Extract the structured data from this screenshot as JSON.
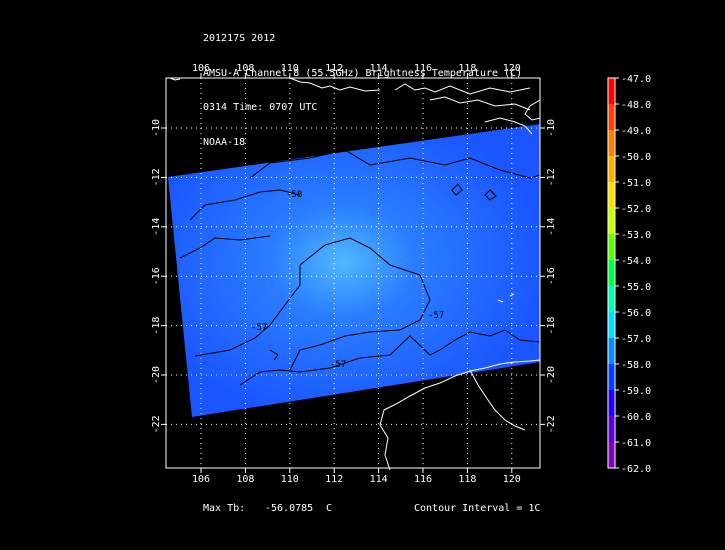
{
  "header": {
    "line1": "201217S 2012",
    "line2": "AMSU-A Channel 8 (55.5GHz) Brightness Temperature (C)",
    "line3": "0314 Time: 0707 UTC",
    "line4": "NOAA-18"
  },
  "map": {
    "lon_ticks": [
      "106",
      "108",
      "110",
      "112",
      "114",
      "116",
      "118",
      "120"
    ],
    "lat_ticks": [
      "-10",
      "-12",
      "-14",
      "-16",
      "-18",
      "-20",
      "-22"
    ],
    "contour_labels": [
      "-58",
      "-57",
      "-57",
      "-57"
    ]
  },
  "colorbar": {
    "labels": [
      "-47.0",
      "-48.0",
      "-49.0",
      "-50.0",
      "-51.0",
      "-52.0",
      "-53.0",
      "-54.0",
      "-55.0",
      "-56.0",
      "-57.0",
      "-58.0",
      "-59.0",
      "-60.0",
      "-61.0",
      "-62.0"
    ],
    "colors": [
      "#ff0000",
      "#ff4000",
      "#ff8000",
      "#ffb000",
      "#ffe000",
      "#c8ff00",
      "#60ff00",
      "#00ff40",
      "#00ffb0",
      "#00e0ff",
      "#0090ff",
      "#0040ff",
      "#2000ff",
      "#6000e0",
      "#8000c0",
      "#ffffff"
    ]
  },
  "footer": {
    "max_tb_label": "Max Tb:",
    "max_tb_value": "-56.0785",
    "max_tb_unit": "C",
    "contour_interval": "Contour Interval = 1C"
  },
  "colors": {
    "swath": "#1a55ff",
    "swath_warm": "#3fa0ff",
    "land_outline": "#ffffff",
    "contour": "#000000"
  }
}
